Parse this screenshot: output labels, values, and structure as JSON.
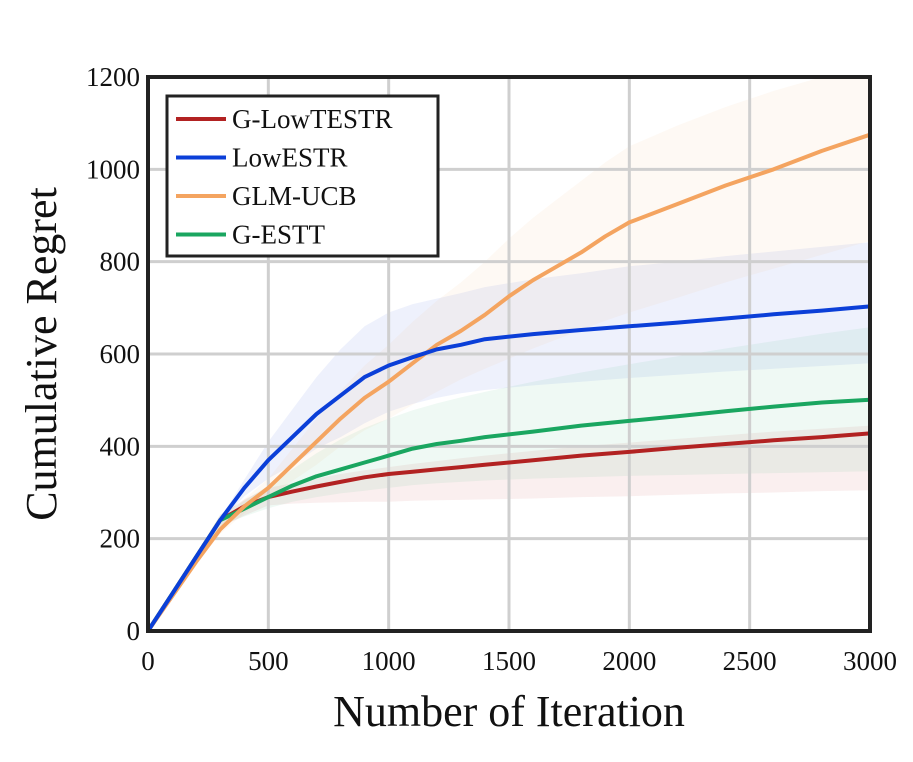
{
  "chart_data": {
    "type": "line",
    "xlabel": "Number of Iteration",
    "ylabel": "Cumulative Regret",
    "xlim": [
      0,
      3000
    ],
    "ylim": [
      0,
      1200
    ],
    "xticks": [
      0,
      500,
      1000,
      1500,
      2000,
      2500,
      3000
    ],
    "yticks": [
      0,
      200,
      400,
      600,
      800,
      1000,
      1200
    ],
    "xtick_labels": [
      "0",
      "500",
      "1000",
      "1500",
      "2000",
      "2500",
      "3000"
    ],
    "ytick_labels": [
      "0",
      "200",
      "400",
      "600",
      "800",
      "1000",
      "1200"
    ],
    "grid": true,
    "legend_position": "top-left",
    "series": [
      {
        "name": "G-LowTESTR",
        "color": "#b22222",
        "x": [
          0,
          100,
          200,
          300,
          400,
          500,
          600,
          700,
          800,
          900,
          1000,
          1100,
          1200,
          1300,
          1400,
          1600,
          1800,
          2000,
          2200,
          2400,
          2600,
          2800,
          3000
        ],
        "y": [
          0,
          80,
          160,
          240,
          270,
          290,
          302,
          313,
          323,
          333,
          340,
          345,
          350,
          355,
          360,
          370,
          380,
          388,
          397,
          405,
          413,
          420,
          428
        ],
        "band_lower": [
          0,
          78,
          150,
          225,
          250,
          272,
          276,
          278,
          279,
          280,
          280,
          282,
          283,
          284,
          285,
          287,
          290,
          292,
          295,
          298,
          300,
          303,
          305
        ],
        "band_upper": [
          0,
          82,
          165,
          252,
          285,
          310,
          320,
          330,
          340,
          348,
          355,
          362,
          368,
          374,
          380,
          390,
          400,
          408,
          416,
          424,
          432,
          438,
          445
        ]
      },
      {
        "name": "LowESTR",
        "color": "#0b3fd8",
        "x": [
          0,
          100,
          200,
          300,
          400,
          500,
          600,
          700,
          800,
          900,
          1000,
          1100,
          1200,
          1300,
          1400,
          1600,
          1800,
          2000,
          2200,
          2400,
          2600,
          2800,
          3000
        ],
        "y": [
          0,
          80,
          160,
          240,
          310,
          370,
          420,
          470,
          510,
          550,
          575,
          593,
          610,
          620,
          632,
          643,
          652,
          660,
          668,
          677,
          686,
          694,
          703
        ],
        "band_lower": [
          0,
          80,
          158,
          236,
          292,
          330,
          360,
          395,
          420,
          450,
          475,
          492,
          505,
          515,
          522,
          532,
          540,
          548,
          555,
          562,
          568,
          574,
          580
        ],
        "band_upper": [
          0,
          80,
          162,
          244,
          328,
          410,
          480,
          550,
          610,
          660,
          690,
          708,
          720,
          732,
          745,
          762,
          775,
          790,
          800,
          812,
          822,
          832,
          842
        ]
      },
      {
        "name": "GLM-UCB",
        "color": "#f4a460",
        "x": [
          0,
          100,
          200,
          300,
          400,
          500,
          600,
          700,
          800,
          900,
          1000,
          1100,
          1200,
          1300,
          1400,
          1500,
          1600,
          1700,
          1800,
          1900,
          2000,
          2200,
          2400,
          2600,
          2800,
          3000
        ],
        "y": [
          0,
          75,
          150,
          220,
          270,
          310,
          360,
          410,
          460,
          505,
          540,
          580,
          620,
          650,
          685,
          725,
          760,
          790,
          820,
          855,
          885,
          925,
          965,
          1000,
          1040,
          1075
        ],
        "band_lower": [
          0,
          72,
          145,
          210,
          255,
          290,
          325,
          360,
          400,
          435,
          460,
          490,
          518,
          545,
          568,
          590,
          612,
          632,
          652,
          672,
          690,
          722,
          755,
          785,
          815,
          845
        ],
        "band_upper": [
          0,
          78,
          155,
          230,
          285,
          330,
          395,
          460,
          520,
          575,
          620,
          670,
          715,
          755,
          800,
          850,
          895,
          935,
          975,
          1015,
          1050,
          1095,
          1135,
          1170,
          1200,
          1200
        ]
      },
      {
        "name": "G-ESTT",
        "color": "#1aa660",
        "x": [
          0,
          100,
          200,
          300,
          400,
          500,
          600,
          700,
          800,
          900,
          1000,
          1100,
          1200,
          1300,
          1400,
          1600,
          1800,
          2000,
          2200,
          2400,
          2600,
          2800,
          3000
        ],
        "y": [
          0,
          80,
          160,
          240,
          265,
          290,
          315,
          335,
          350,
          365,
          380,
          395,
          405,
          412,
          420,
          432,
          445,
          455,
          465,
          476,
          486,
          495,
          501
        ],
        "band_lower": [
          0,
          78,
          154,
          228,
          248,
          266,
          280,
          290,
          298,
          304,
          310,
          316,
          320,
          323,
          326,
          330,
          333,
          336,
          338,
          340,
          342,
          344,
          346
        ],
        "band_upper": [
          0,
          82,
          166,
          252,
          282,
          315,
          350,
          385,
          415,
          440,
          460,
          478,
          493,
          506,
          518,
          540,
          560,
          578,
          595,
          612,
          628,
          644,
          658
        ]
      }
    ]
  }
}
